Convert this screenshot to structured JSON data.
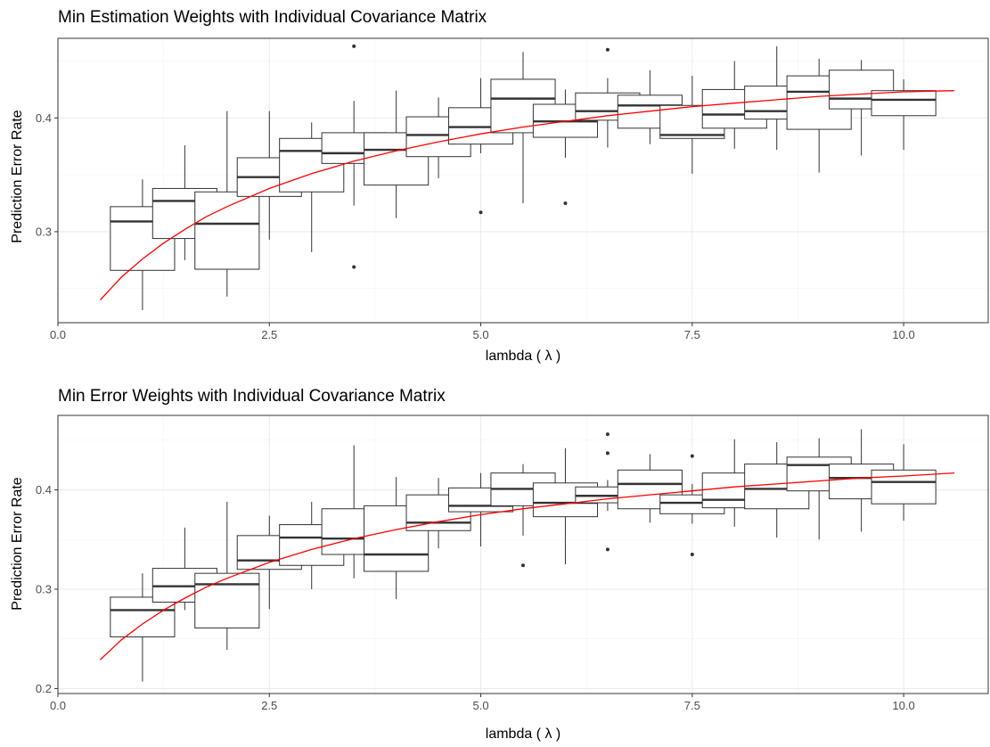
{
  "chart_data": [
    {
      "type": "boxplot",
      "title": "Min Estimation Weights with Individual Covariance Matrix",
      "xlabel": "lambda ( λ )",
      "ylabel": "Prediction Error Rate",
      "xlim": [
        0,
        11
      ],
      "ylim": [
        0.22,
        0.47
      ],
      "x_ticks": [
        0,
        2.5,
        5,
        7.5,
        10
      ],
      "x_tick_labels": [
        "0.0",
        "2.5",
        "5.0",
        "7.5",
        "10.0"
      ],
      "y_ticks": [
        0.3,
        0.4
      ],
      "y_tick_labels": [
        "0.3",
        "0.4"
      ],
      "grid": true,
      "boxes": [
        {
          "x": 1.0,
          "whisker_low": 0.231,
          "q1": 0.266,
          "median": 0.309,
          "q3": 0.322,
          "whisker_high": 0.346,
          "outliers": []
        },
        {
          "x": 1.5,
          "whisker_low": 0.275,
          "q1": 0.294,
          "median": 0.327,
          "q3": 0.338,
          "whisker_high": 0.376,
          "outliers": []
        },
        {
          "x": 2.0,
          "whisker_low": 0.243,
          "q1": 0.267,
          "median": 0.307,
          "q3": 0.335,
          "whisker_high": 0.406,
          "outliers": []
        },
        {
          "x": 2.5,
          "whisker_low": 0.293,
          "q1": 0.331,
          "median": 0.348,
          "q3": 0.365,
          "whisker_high": 0.406,
          "outliers": []
        },
        {
          "x": 3.0,
          "whisker_low": 0.282,
          "q1": 0.335,
          "median": 0.371,
          "q3": 0.382,
          "whisker_high": 0.396,
          "outliers": []
        },
        {
          "x": 3.5,
          "whisker_low": 0.323,
          "q1": 0.36,
          "median": 0.369,
          "q3": 0.387,
          "whisker_high": 0.415,
          "outliers": [
            0.269,
            0.463
          ]
        },
        {
          "x": 4.0,
          "whisker_low": 0.312,
          "q1": 0.341,
          "median": 0.372,
          "q3": 0.387,
          "whisker_high": 0.424,
          "outliers": []
        },
        {
          "x": 4.5,
          "whisker_low": 0.347,
          "q1": 0.366,
          "median": 0.385,
          "q3": 0.401,
          "whisker_high": 0.418,
          "outliers": []
        },
        {
          "x": 5.0,
          "whisker_low": 0.369,
          "q1": 0.377,
          "median": 0.392,
          "q3": 0.409,
          "whisker_high": 0.435,
          "outliers": [
            0.317
          ]
        },
        {
          "x": 5.5,
          "whisker_low": 0.325,
          "q1": 0.387,
          "median": 0.417,
          "q3": 0.434,
          "whisker_high": 0.458,
          "outliers": []
        },
        {
          "x": 6.0,
          "whisker_low": 0.365,
          "q1": 0.383,
          "median": 0.397,
          "q3": 0.412,
          "whisker_high": 0.425,
          "outliers": [
            0.325
          ]
        },
        {
          "x": 6.5,
          "whisker_low": 0.374,
          "q1": 0.398,
          "median": 0.406,
          "q3": 0.422,
          "whisker_high": 0.435,
          "outliers": [
            0.46
          ]
        },
        {
          "x": 7.0,
          "whisker_low": 0.377,
          "q1": 0.391,
          "median": 0.411,
          "q3": 0.42,
          "whisker_high": 0.442,
          "outliers": []
        },
        {
          "x": 7.5,
          "whisker_low": 0.351,
          "q1": 0.382,
          "median": 0.385,
          "q3": 0.411,
          "whisker_high": 0.437,
          "outliers": []
        },
        {
          "x": 8.0,
          "whisker_low": 0.373,
          "q1": 0.391,
          "median": 0.403,
          "q3": 0.425,
          "whisker_high": 0.45,
          "outliers": []
        },
        {
          "x": 8.5,
          "whisker_low": 0.372,
          "q1": 0.399,
          "median": 0.406,
          "q3": 0.428,
          "whisker_high": 0.463,
          "outliers": []
        },
        {
          "x": 9.0,
          "whisker_low": 0.352,
          "q1": 0.39,
          "median": 0.423,
          "q3": 0.437,
          "whisker_high": 0.452,
          "outliers": []
        },
        {
          "x": 9.5,
          "whisker_low": 0.367,
          "q1": 0.408,
          "median": 0.417,
          "q3": 0.442,
          "whisker_high": 0.451,
          "outliers": []
        },
        {
          "x": 10.0,
          "whisker_low": 0.372,
          "q1": 0.402,
          "median": 0.416,
          "q3": 0.424,
          "whisker_high": 0.434,
          "outliers": []
        }
      ],
      "trend": {
        "x": [
          0.5,
          0.75,
          1.0,
          1.25,
          1.5,
          1.75,
          2.0,
          2.5,
          3.0,
          3.5,
          4.0,
          4.5,
          5.0,
          5.5,
          6.0,
          6.5,
          7.0,
          7.5,
          8.0,
          8.5,
          9.0,
          9.5,
          10.0,
          10.6
        ],
        "y": [
          0.24,
          0.26,
          0.276,
          0.29,
          0.302,
          0.313,
          0.322,
          0.338,
          0.351,
          0.362,
          0.371,
          0.379,
          0.386,
          0.392,
          0.397,
          0.402,
          0.406,
          0.41,
          0.413,
          0.416,
          0.419,
          0.421,
          0.423,
          0.424
        ],
        "color": "#ff0000"
      }
    },
    {
      "type": "boxplot",
      "title": "Min Error Weights with Individual Covariance Matrix",
      "xlabel": "lambda ( λ )",
      "ylabel": "Prediction Error Rate",
      "xlim": [
        0,
        11
      ],
      "ylim": [
        0.195,
        0.475
      ],
      "x_ticks": [
        0,
        2.5,
        5,
        7.5,
        10
      ],
      "x_tick_labels": [
        "0.0",
        "2.5",
        "5.0",
        "7.5",
        "10.0"
      ],
      "y_ticks": [
        0.2,
        0.3,
        0.4
      ],
      "y_tick_labels": [
        "0.2",
        "0.3",
        "0.4"
      ],
      "grid": true,
      "boxes": [
        {
          "x": 1.0,
          "whisker_low": 0.207,
          "q1": 0.252,
          "median": 0.279,
          "q3": 0.292,
          "whisker_high": 0.316,
          "outliers": []
        },
        {
          "x": 1.5,
          "whisker_low": 0.279,
          "q1": 0.287,
          "median": 0.303,
          "q3": 0.321,
          "whisker_high": 0.362,
          "outliers": []
        },
        {
          "x": 2.0,
          "whisker_low": 0.239,
          "q1": 0.261,
          "median": 0.305,
          "q3": 0.316,
          "whisker_high": 0.388,
          "outliers": []
        },
        {
          "x": 2.5,
          "whisker_low": 0.28,
          "q1": 0.32,
          "median": 0.329,
          "q3": 0.354,
          "whisker_high": 0.374,
          "outliers": []
        },
        {
          "x": 3.0,
          "whisker_low": 0.3,
          "q1": 0.324,
          "median": 0.352,
          "q3": 0.365,
          "whisker_high": 0.388,
          "outliers": []
        },
        {
          "x": 3.5,
          "whisker_low": 0.311,
          "q1": 0.335,
          "median": 0.351,
          "q3": 0.381,
          "whisker_high": 0.445,
          "outliers": []
        },
        {
          "x": 4.0,
          "whisker_low": 0.29,
          "q1": 0.318,
          "median": 0.335,
          "q3": 0.384,
          "whisker_high": 0.413,
          "outliers": []
        },
        {
          "x": 4.5,
          "whisker_low": 0.341,
          "q1": 0.359,
          "median": 0.367,
          "q3": 0.395,
          "whisker_high": 0.412,
          "outliers": []
        },
        {
          "x": 5.0,
          "whisker_low": 0.343,
          "q1": 0.378,
          "median": 0.384,
          "q3": 0.402,
          "whisker_high": 0.417,
          "outliers": []
        },
        {
          "x": 5.5,
          "whisker_low": 0.354,
          "q1": 0.384,
          "median": 0.401,
          "q3": 0.417,
          "whisker_high": 0.426,
          "outliers": [
            0.324
          ]
        },
        {
          "x": 6.0,
          "whisker_low": 0.325,
          "q1": 0.373,
          "median": 0.387,
          "q3": 0.407,
          "whisker_high": 0.442,
          "outliers": []
        },
        {
          "x": 6.5,
          "whisker_low": 0.379,
          "q1": 0.387,
          "median": 0.394,
          "q3": 0.403,
          "whisker_high": 0.41,
          "outliers": [
            0.34,
            0.437,
            0.456
          ]
        },
        {
          "x": 7.0,
          "whisker_low": 0.367,
          "q1": 0.381,
          "median": 0.406,
          "q3": 0.42,
          "whisker_high": 0.436,
          "outliers": []
        },
        {
          "x": 7.5,
          "whisker_low": 0.366,
          "q1": 0.376,
          "median": 0.387,
          "q3": 0.395,
          "whisker_high": 0.406,
          "outliers": [
            0.335,
            0.434
          ]
        },
        {
          "x": 8.0,
          "whisker_low": 0.363,
          "q1": 0.382,
          "median": 0.39,
          "q3": 0.417,
          "whisker_high": 0.451,
          "outliers": []
        },
        {
          "x": 8.5,
          "whisker_low": 0.352,
          "q1": 0.381,
          "median": 0.401,
          "q3": 0.426,
          "whisker_high": 0.448,
          "outliers": []
        },
        {
          "x": 9.0,
          "whisker_low": 0.35,
          "q1": 0.399,
          "median": 0.425,
          "q3": 0.433,
          "whisker_high": 0.452,
          "outliers": []
        },
        {
          "x": 9.5,
          "whisker_low": 0.358,
          "q1": 0.391,
          "median": 0.412,
          "q3": 0.426,
          "whisker_high": 0.461,
          "outliers": []
        },
        {
          "x": 10.0,
          "whisker_low": 0.369,
          "q1": 0.386,
          "median": 0.408,
          "q3": 0.42,
          "whisker_high": 0.446,
          "outliers": []
        }
      ],
      "trend": {
        "x": [
          0.5,
          0.75,
          1.0,
          1.25,
          1.5,
          1.75,
          2.0,
          2.5,
          3.0,
          3.5,
          4.0,
          4.5,
          5.0,
          5.5,
          6.0,
          6.5,
          7.0,
          7.5,
          8.0,
          8.5,
          9.0,
          9.5,
          10.0,
          10.6
        ],
        "y": [
          0.229,
          0.249,
          0.265,
          0.279,
          0.291,
          0.302,
          0.311,
          0.327,
          0.34,
          0.351,
          0.36,
          0.368,
          0.375,
          0.381,
          0.386,
          0.391,
          0.395,
          0.399,
          0.403,
          0.406,
          0.409,
          0.412,
          0.414,
          0.417
        ],
        "color": "#ff0000"
      }
    }
  ]
}
